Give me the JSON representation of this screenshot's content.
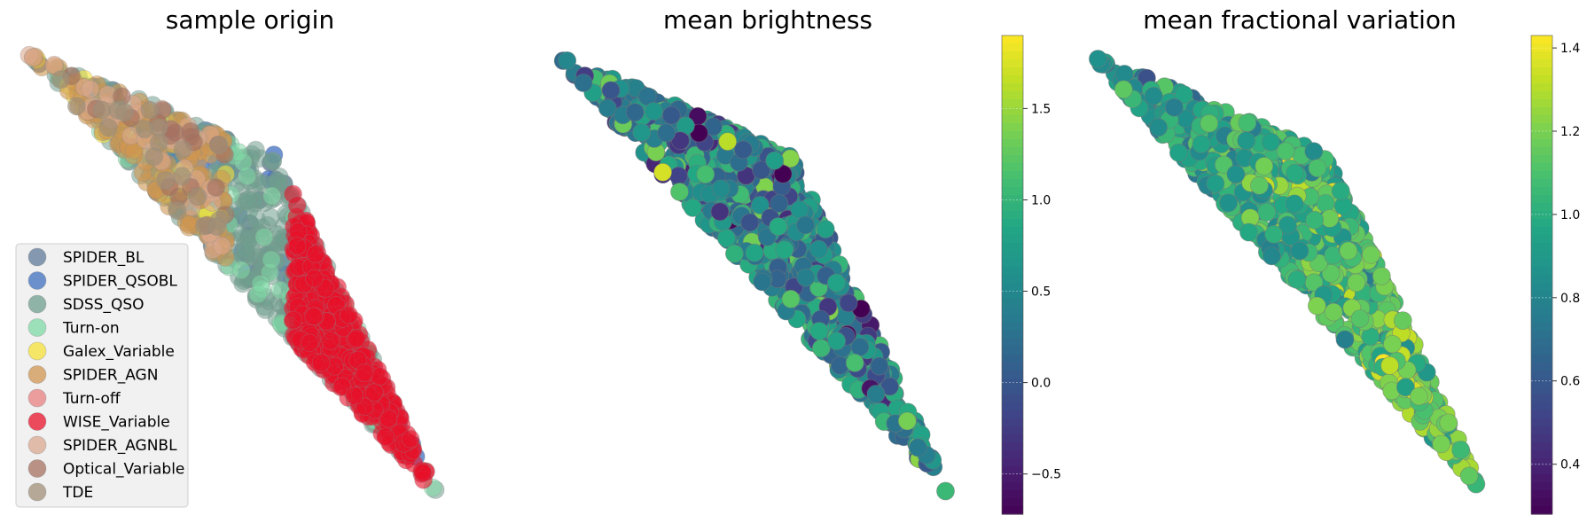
{
  "chart_data": [
    {
      "type": "scatter",
      "title": "sample origin",
      "xlabel": "",
      "ylabel": "",
      "grid": false,
      "legend": {
        "placement": "lower-left"
      },
      "series": [
        {
          "name": "SPIDER_BL",
          "color": "#5f7a98",
          "opacity": 0.8,
          "count": 40
        },
        {
          "name": "SPIDER_QSOBL",
          "color": "#3f6fbf",
          "opacity": 0.75,
          "count": 40
        },
        {
          "name": "SDSS_QSO",
          "color": "#6f9e8e",
          "opacity": 0.55,
          "count": 420
        },
        {
          "name": "Turn-on",
          "color": "#7fd9a6",
          "opacity": 0.55,
          "count": 60
        },
        {
          "name": "Galex_Variable",
          "color": "#f5e23a",
          "opacity": 0.6,
          "count": 30
        },
        {
          "name": "SPIDER_AGN",
          "color": "#cf9650",
          "opacity": 0.6,
          "count": 130
        },
        {
          "name": "Turn-off",
          "color": "#e88080",
          "opacity": 0.6,
          "count": 20
        },
        {
          "name": "WISE_Variable",
          "color": "#e8102a",
          "opacity": 0.6,
          "count": 420
        },
        {
          "name": "SPIDER_AGNBL",
          "color": "#dba890",
          "opacity": 0.6,
          "count": 40
        },
        {
          "name": "Optical_Variable",
          "color": "#a57060",
          "opacity": 0.65,
          "count": 20
        },
        {
          "name": "TDE",
          "color": "#a08f78",
          "opacity": 0.7,
          "count": 20
        }
      ]
    },
    {
      "type": "scatter",
      "title": "mean brightness",
      "xlabel": "",
      "ylabel": "",
      "grid": false,
      "colormap": "viridis",
      "color_range": [
        -0.72,
        1.9
      ],
      "colorbar_ticks": [
        -0.5,
        0.0,
        0.5,
        1.0,
        1.5
      ],
      "colorbar_tick_labels": [
        "−0.5",
        "0.0",
        "0.5",
        "1.0",
        "1.5"
      ],
      "value_distribution": {
        "mean": 0.45,
        "sd": 0.45
      },
      "count": 900
    },
    {
      "type": "scatter",
      "title": "mean fractional variation",
      "xlabel": "",
      "ylabel": "",
      "grid": false,
      "colormap": "viridis",
      "color_range": [
        0.28,
        1.43
      ],
      "colorbar_ticks": [
        0.4,
        0.6,
        0.8,
        1.0,
        1.2,
        1.4
      ],
      "colorbar_tick_labels": [
        "0.4",
        "0.6",
        "0.8",
        "1.0",
        "1.2",
        "1.4"
      ],
      "value_distribution": {
        "left": 0.88,
        "right": 1.2,
        "sd": 0.12
      },
      "count": 900
    }
  ]
}
